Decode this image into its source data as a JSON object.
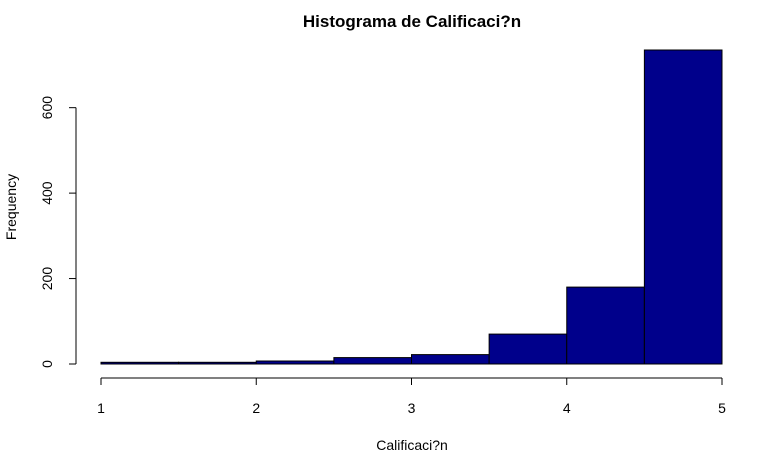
{
  "chart_data": {
    "type": "bar",
    "title": "Histograma de Calificaci?n",
    "xlabel": "Calificaci?n",
    "ylabel": "Frequency",
    "bins": [
      {
        "start": 1.0,
        "end": 1.5,
        "count": 4
      },
      {
        "start": 1.5,
        "end": 2.0,
        "count": 4
      },
      {
        "start": 2.0,
        "end": 2.5,
        "count": 7
      },
      {
        "start": 2.5,
        "end": 3.0,
        "count": 15
      },
      {
        "start": 3.0,
        "end": 3.5,
        "count": 22
      },
      {
        "start": 3.5,
        "end": 4.0,
        "count": 70
      },
      {
        "start": 4.0,
        "end": 4.5,
        "count": 180
      },
      {
        "start": 4.5,
        "end": 5.0,
        "count": 735
      }
    ],
    "xlim": [
      1,
      5
    ],
    "ylim": [
      0,
      735
    ],
    "x_ticks": [
      1,
      2,
      3,
      4,
      5
    ],
    "y_ticks": [
      0,
      200,
      400,
      600
    ],
    "bar_color": "#00008B",
    "bar_edge_color": "#000000",
    "grid": false
  }
}
